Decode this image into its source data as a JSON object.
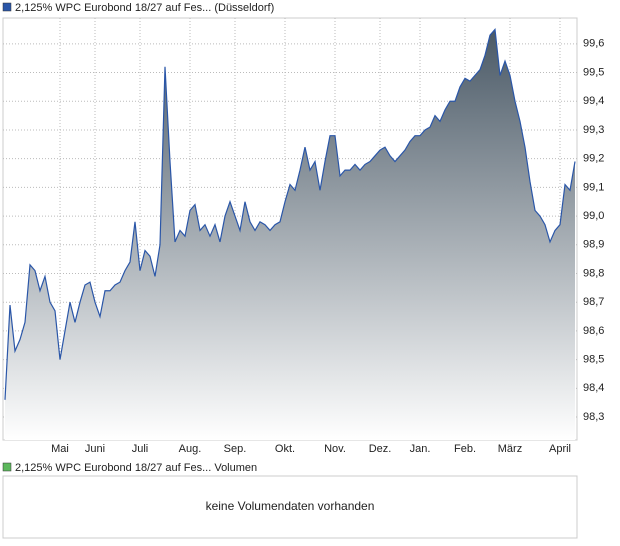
{
  "chart_data": {
    "type": "area",
    "series": [
      {
        "name": "2,125% WPC Eurobond 18/27 auf Fes... (Düsseldorf)",
        "color": "#2a56a8",
        "values": [
          98.36,
          98.69,
          98.53,
          98.57,
          98.63,
          98.83,
          98.81,
          98.74,
          98.79,
          98.7,
          98.67,
          98.5,
          98.6,
          98.7,
          98.63,
          98.7,
          98.76,
          98.77,
          98.7,
          98.65,
          98.74,
          98.74,
          98.76,
          98.77,
          98.81,
          98.84,
          98.98,
          98.81,
          98.88,
          98.86,
          98.79,
          98.9,
          99.52,
          99.19,
          98.91,
          98.95,
          98.93,
          99.02,
          99.04,
          98.95,
          98.97,
          98.93,
          98.97,
          98.91,
          99.0,
          99.05,
          99.0,
          98.95,
          99.05,
          98.98,
          98.95,
          98.98,
          98.97,
          98.95,
          98.97,
          98.98,
          99.05,
          99.11,
          99.09,
          99.16,
          99.24,
          99.16,
          99.19,
          99.09,
          99.19,
          99.28,
          99.28,
          99.14,
          99.16,
          99.16,
          99.18,
          99.16,
          99.18,
          99.19,
          99.21,
          99.23,
          99.24,
          99.21,
          99.19,
          99.21,
          99.23,
          99.26,
          99.28,
          99.28,
          99.3,
          99.31,
          99.35,
          99.33,
          99.37,
          99.4,
          99.4,
          99.45,
          99.48,
          99.47,
          99.49,
          99.51,
          99.56,
          99.63,
          99.65,
          99.49,
          99.54,
          99.49,
          99.4,
          99.33,
          99.24,
          99.12,
          99.02,
          99.0,
          98.97,
          98.91,
          98.95,
          98.97,
          99.11,
          99.09,
          99.19
        ]
      }
    ],
    "categories": [
      null,
      null,
      null,
      null,
      null,
      null,
      null,
      null,
      null,
      null,
      null,
      "Mai",
      null,
      null,
      null,
      null,
      null,
      null,
      "Juni",
      null,
      null,
      null,
      null,
      null,
      null,
      null,
      null,
      "Juli",
      null,
      null,
      null,
      null,
      null,
      null,
      null,
      null,
      null,
      "Aug.",
      null,
      null,
      null,
      null,
      null,
      null,
      null,
      null,
      "Sep.",
      null,
      null,
      null,
      null,
      null,
      null,
      null,
      null,
      null,
      "Okt.",
      null,
      null,
      null,
      null,
      null,
      null,
      null,
      null,
      null,
      "Nov.",
      null,
      null,
      null,
      null,
      null,
      null,
      null,
      null,
      "Dez.",
      null,
      null,
      null,
      null,
      null,
      null,
      null,
      "Jan.",
      null,
      null,
      null,
      null,
      null,
      null,
      null,
      null,
      "Feb.",
      null,
      null,
      null,
      null,
      null,
      null,
      null,
      null,
      "März",
      null,
      null,
      null,
      null,
      null,
      null,
      null,
      null,
      null,
      "April",
      null,
      null,
      null
    ],
    "ylim": [
      98.22,
      99.69
    ],
    "yticks": [
      {
        "value": 98.3,
        "label": "98,3"
      },
      {
        "value": 98.4,
        "label": "98,4"
      },
      {
        "value": 98.5,
        "label": "98,5"
      },
      {
        "value": 98.6,
        "label": "98,6"
      },
      {
        "value": 98.7,
        "label": "98,7"
      },
      {
        "value": 98.8,
        "label": "98,8"
      },
      {
        "value": 98.9,
        "label": "98,9"
      },
      {
        "value": 99.0,
        "label": "99,0"
      },
      {
        "value": 99.1,
        "label": "99,1"
      },
      {
        "value": 99.2,
        "label": "99,2"
      },
      {
        "value": 99.3,
        "label": "99,3"
      },
      {
        "value": 99.4,
        "label": "99,4"
      },
      {
        "value": 99.5,
        "label": "99,5"
      },
      {
        "value": 99.6,
        "label": "99,6"
      }
    ],
    "grid": true
  },
  "volume_panel": {
    "legend": "2,125% WPC Eurobond 18/27 auf Fes... Volumen",
    "color": "#5cb85c",
    "message": "keine Volumendaten vorhanden"
  }
}
